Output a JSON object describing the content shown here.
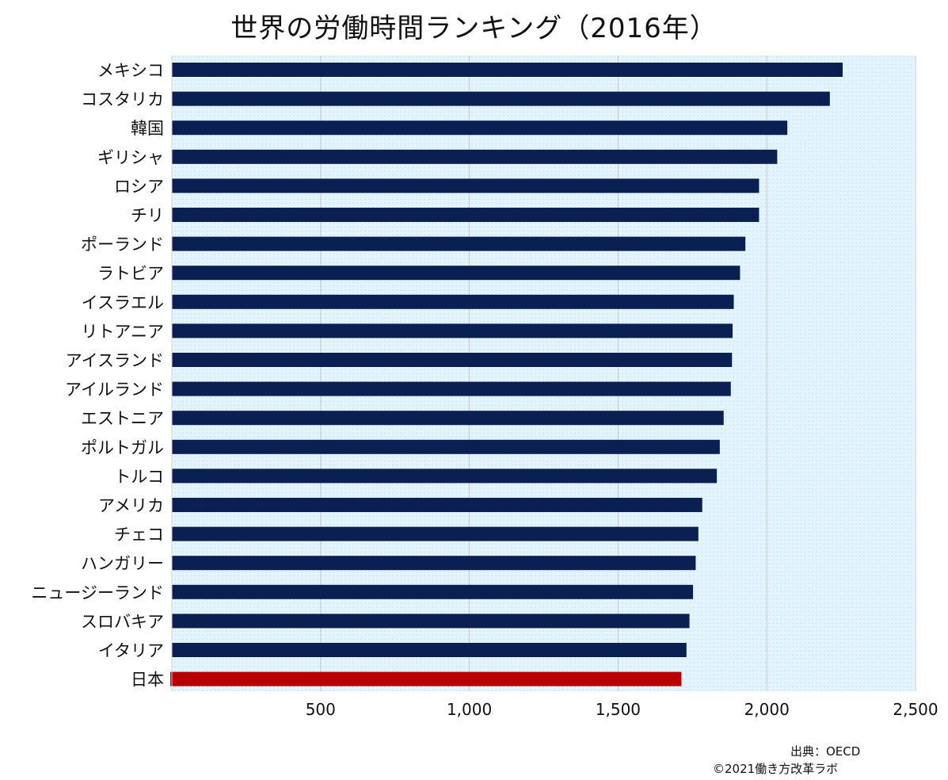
{
  "chart_data": {
    "type": "bar",
    "orientation": "horizontal",
    "title": "世界の労働時間ランキング（2016年）",
    "categories": [
      "メキシコ",
      "コスタリカ",
      "韓国",
      "ギリシャ",
      "ロシア",
      "チリ",
      "ポーランド",
      "ラトビア",
      "イスラエル",
      "リトアニア",
      "アイスランド",
      "アイルランド",
      "エストニア",
      "ポルトガル",
      "トルコ",
      "アメリカ",
      "チェコ",
      "ハンガリー",
      "ニュージーランド",
      "スロバキア",
      "イタリア",
      "日本"
    ],
    "values": [
      2255,
      2212,
      2069,
      2035,
      1974,
      1974,
      1928,
      1910,
      1889,
      1885,
      1883,
      1879,
      1855,
      1842,
      1832,
      1783,
      1770,
      1761,
      1752,
      1740,
      1730,
      1713
    ],
    "highlight_category": "日本",
    "xlim": [
      0,
      2500
    ],
    "xticks": [
      500,
      1000,
      1500,
      2000,
      2500
    ],
    "xtick_labels": [
      "500",
      "1,000",
      "1,500",
      "2,000",
      "2,500"
    ],
    "grid": "vertical",
    "legend": "none",
    "colors": {
      "bar": "#0a1f52",
      "highlight_bar": "#b80000",
      "highlight_label": "#c00000",
      "plot_background": "#e3f4fc",
      "gridline": "#c8c8c8"
    }
  },
  "footer": {
    "source": "出典：OECD",
    "copyright": "©2021働き方改革ラボ"
  }
}
